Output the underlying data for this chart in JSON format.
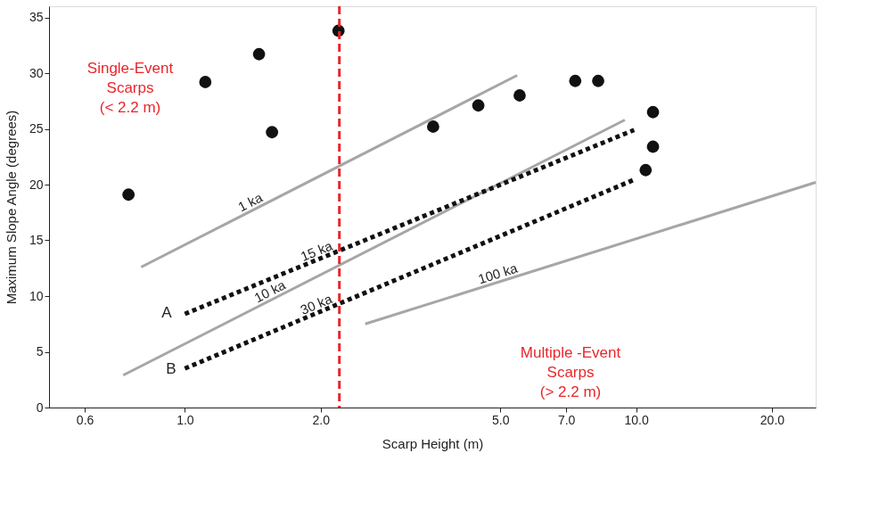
{
  "chart_data": {
    "type": "scatter",
    "xlabel": "Scarp Height (m)",
    "ylabel": "Maximum Slope Angle (degrees)",
    "log": "x",
    "xlim": [
      0.5,
      25
    ],
    "ylim": [
      0,
      36
    ],
    "xticks": [
      0.6,
      {
        "value": 1,
        "label": "1.0"
      },
      {
        "value": 2,
        "label": "2.0"
      },
      {
        "value": 5,
        "label": "5.0"
      },
      {
        "value": 7,
        "label": "7.0"
      },
      {
        "value": 10,
        "label": "10.0"
      },
      {
        "value": 20,
        "label": "20.0"
      }
    ],
    "yticks": [
      0,
      5,
      10,
      15,
      20,
      25,
      30,
      35
    ],
    "grid": false,
    "series": [
      {
        "color": "#111111",
        "marker": "circle",
        "x": [
          0.75,
          1.11,
          1.46,
          1.56,
          2.19,
          3.55,
          4.47,
          5.52,
          7.33,
          8.24,
          10.5,
          10.9,
          10.9
        ],
        "values": [
          19.1,
          29.2,
          31.7,
          24.7,
          33.8,
          25.2,
          27.1,
          28.0,
          29.3,
          29.3,
          21.3,
          26.5,
          23.4
        ]
      },
      {
        "type": "line",
        "name": "1 ka",
        "marker": "none",
        "color": "#a6a6a6",
        "line_style": "solid",
        "x": [
          0.8,
          5.45
        ],
        "values": [
          12.6,
          29.8
        ]
      },
      {
        "type": "line",
        "name": "10 ka",
        "marker": "none",
        "color": "#a6a6a6",
        "line_style": "solid",
        "x": [
          0.73,
          9.44
        ],
        "values": [
          2.9,
          25.8
        ]
      },
      {
        "type": "line",
        "name": "100 ka",
        "marker": "none",
        "color": "#a6a6a6",
        "line_style": "solid",
        "x": [
          2.51,
          25
        ],
        "values": [
          7.5,
          20.2
        ]
      },
      {
        "type": "line",
        "name": "15 ka",
        "marker": "none",
        "color": "#111111",
        "line_style": "dotted",
        "x": [
          1.0,
          9.9
        ],
        "values": [
          8.4,
          24.9
        ]
      },
      {
        "type": "line",
        "name": "30 ka",
        "marker": "none",
        "color": "#111111",
        "line_style": "dotted",
        "x": [
          1.0,
          9.85
        ],
        "values": [
          3.5,
          20.4
        ]
      }
    ],
    "ref_lines": [
      {
        "axis": "x",
        "value": 2.2,
        "color": "#e8262b",
        "line_style": "dashed"
      }
    ],
    "annotations": [
      "Single-Event\nScarps\n(< 2.2 m)",
      "Multiple -Event\nScarps\n(> 2.2 m)",
      "A",
      "B"
    ]
  }
}
